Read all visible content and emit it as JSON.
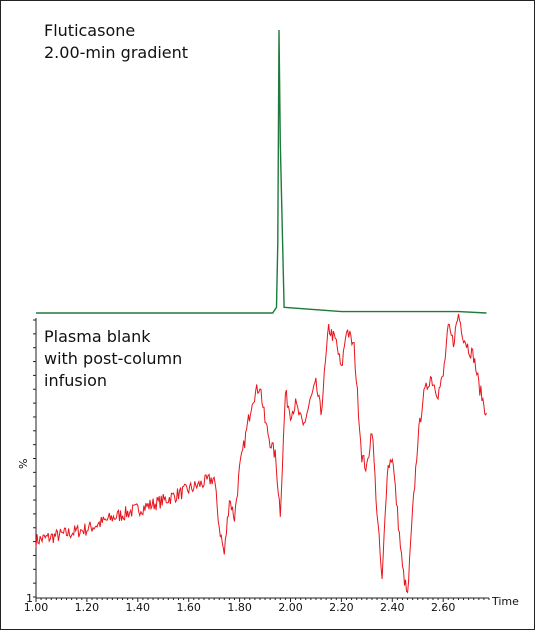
{
  "chart_data": [
    {
      "type": "line",
      "title_lines": [
        "Fluticasone",
        "2.00-min gradient"
      ],
      "series": [
        {
          "color": "#1e7a3c",
          "x": [
            1.0,
            1.93,
            1.945,
            1.95,
            1.955,
            1.96,
            1.975,
            2.2,
            2.66,
            2.77
          ],
          "y": [
            0,
            0,
            2,
            25,
            100,
            60,
            2,
            0.5,
            0.5,
            0
          ]
        }
      ],
      "xlim": [
        1.0,
        2.78
      ],
      "ylim": [
        0,
        100
      ]
    },
    {
      "type": "line",
      "title_lines": [
        "Plasma blank",
        "with post-column",
        "infusion"
      ],
      "ylabel": "%",
      "xlabel": "Time",
      "ytick_label": "1",
      "series": [
        {
          "color": "#e8141b",
          "x": [
            1.0,
            1.1,
            1.2,
            1.3,
            1.4,
            1.5,
            1.6,
            1.7,
            1.72,
            1.74,
            1.76,
            1.78,
            1.8,
            1.82,
            1.85,
            1.88,
            1.9,
            1.92,
            1.94,
            1.96,
            1.98,
            2.0,
            2.02,
            2.05,
            2.08,
            2.1,
            2.12,
            2.15,
            2.18,
            2.2,
            2.22,
            2.25,
            2.28,
            2.3,
            2.32,
            2.34,
            2.36,
            2.38,
            2.4,
            2.42,
            2.44,
            2.46,
            2.48,
            2.5,
            2.52,
            2.55,
            2.58,
            2.6,
            2.62,
            2.64,
            2.66,
            2.68,
            2.7,
            2.72,
            2.74,
            2.76,
            2.77
          ],
          "y": [
            20,
            22,
            24,
            28,
            31,
            34,
            38,
            42,
            25,
            15,
            35,
            28,
            45,
            55,
            70,
            75,
            62,
            55,
            50,
            30,
            72,
            65,
            68,
            60,
            70,
            75,
            65,
            95,
            90,
            80,
            95,
            88,
            50,
            45,
            60,
            30,
            5,
            45,
            50,
            30,
            10,
            0,
            30,
            55,
            70,
            78,
            72,
            78,
            95,
            90,
            100,
            92,
            88,
            85,
            75,
            68,
            65
          ]
        }
      ],
      "xticks": [
        "1.00",
        "1.20",
        "1.40",
        "1.60",
        "1.80",
        "2.00",
        "2.20",
        "2.40",
        "2.60"
      ],
      "xtick_values": [
        1.0,
        1.2,
        1.4,
        1.6,
        1.8,
        2.0,
        2.2,
        2.4,
        2.6
      ],
      "xlim": [
        1.0,
        2.78
      ],
      "ylim": [
        0,
        100
      ]
    }
  ]
}
